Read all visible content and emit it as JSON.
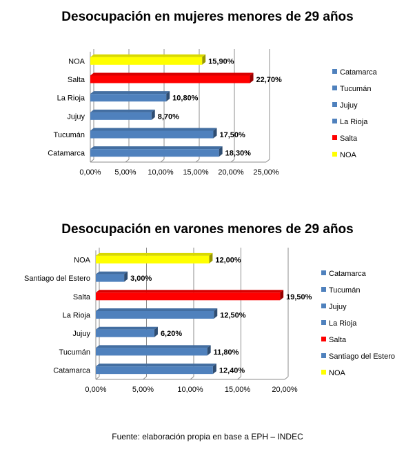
{
  "colors": {
    "blue": "#4f81bd",
    "red": "#ff0000",
    "yellow": "#ffff00"
  },
  "chart_data": [
    {
      "type": "bar",
      "orientation": "horizontal",
      "title": "Desocupación en mujeres menores de 29 años",
      "categories": [
        "NOA",
        "Salta",
        "La Rioja",
        "Jujuy",
        "Tucumán",
        "Catamarca"
      ],
      "values": [
        15.9,
        22.7,
        10.8,
        8.7,
        17.5,
        18.3
      ],
      "value_labels": [
        "15,90%",
        "22,70%",
        "10,80%",
        "8,70%",
        "17,50%",
        "18,30%"
      ],
      "bar_colors": [
        "#ffff00",
        "#ff0000",
        "#4f81bd",
        "#4f81bd",
        "#4f81bd",
        "#4f81bd"
      ],
      "xlim": [
        0,
        25
      ],
      "ticks": [
        "0,00%",
        "5,00%",
        "10,00%",
        "15,00%",
        "20,00%",
        "25,00%"
      ],
      "grid": true,
      "legend_position": "right",
      "legend": [
        {
          "label": "Catamarca",
          "color": "#4f81bd"
        },
        {
          "label": "Tucumán",
          "color": "#4f81bd"
        },
        {
          "label": "Jujuy",
          "color": "#4f81bd"
        },
        {
          "label": "La Rioja",
          "color": "#4f81bd"
        },
        {
          "label": "Salta",
          "color": "#ff0000"
        },
        {
          "label": "NOA",
          "color": "#ffff00"
        }
      ]
    },
    {
      "type": "bar",
      "orientation": "horizontal",
      "title": "Desocupación en varones menores de 29 años",
      "categories": [
        "NOA",
        "Santiago del Estero",
        "Salta",
        "La Rioja",
        "Jujuy",
        "Tucumán",
        "Catamarca"
      ],
      "values": [
        12.0,
        3.0,
        19.5,
        12.5,
        6.2,
        11.8,
        12.4
      ],
      "value_labels": [
        "12,00%",
        "3,00%",
        "19,50%",
        "12,50%",
        "6,20%",
        "11,80%",
        "12,40%"
      ],
      "bar_colors": [
        "#ffff00",
        "#4f81bd",
        "#ff0000",
        "#4f81bd",
        "#4f81bd",
        "#4f81bd",
        "#4f81bd"
      ],
      "xlim": [
        0,
        20
      ],
      "ticks": [
        "0,00%",
        "5,00%",
        "10,00%",
        "15,00%",
        "20,00%"
      ],
      "grid": true,
      "legend_position": "right",
      "legend": [
        {
          "label": "Catamarca",
          "color": "#4f81bd"
        },
        {
          "label": "Tucumán",
          "color": "#4f81bd"
        },
        {
          "label": "Jujuy",
          "color": "#4f81bd"
        },
        {
          "label": "La Rioja",
          "color": "#4f81bd"
        },
        {
          "label": "Salta",
          "color": "#ff0000"
        },
        {
          "label": "Santiago del Estero",
          "color": "#4f81bd"
        },
        {
          "label": "NOA",
          "color": "#ffff00"
        }
      ]
    }
  ],
  "source": "Fuente: elaboración propia en base a EPH – INDEC"
}
